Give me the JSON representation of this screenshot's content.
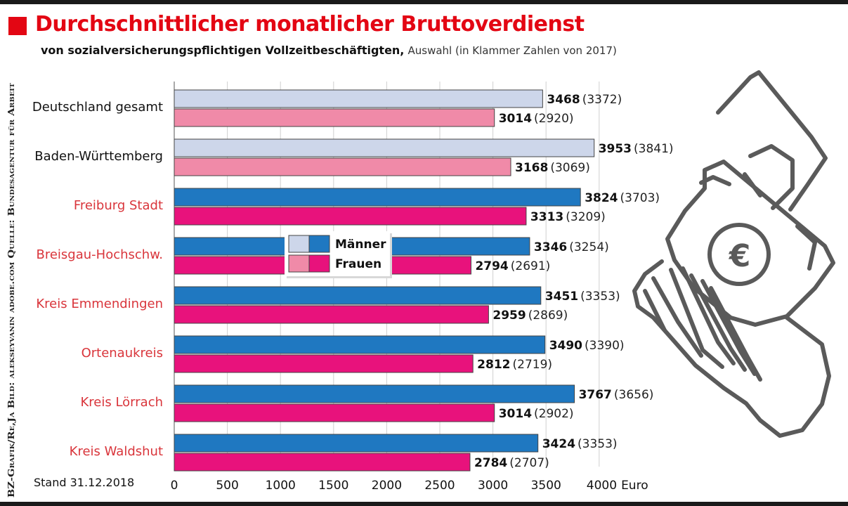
{
  "header": {
    "title": "Durchschnittlicher monatlicher Bruttoverdienst",
    "subtitle_bold": "von sozialversicherungspflichtigen Vollzeitbeschäftigten,",
    "subtitle_rest": "Auswahl (in Klammer Zahlen von 2017)",
    "title_color": "#e30613"
  },
  "source": "BZ-Grafik/Re,Ja   Bild: alekseyvanin adobe.com   Quelle: Bundesagentur für Arbeit",
  "footer": {
    "stand": "Stand 31.12.2018"
  },
  "illustration": {
    "icon": "hand-money-euro-icon",
    "symbol": "€"
  },
  "chart_data": {
    "type": "bar",
    "orientation": "horizontal",
    "categories": [
      "Deutschland gesamt",
      "Baden-Württemberg",
      "Freiburg Stadt",
      "Breisgau-Hochschw.",
      "Kreis Emmendingen",
      "Ortenaukreis",
      "Kreis Lörrach",
      "Kreis Waldshut"
    ],
    "category_highlight": [
      false,
      false,
      true,
      true,
      true,
      true,
      true,
      true
    ],
    "series": [
      {
        "name": "Männer",
        "values": [
          3468,
          3953,
          3824,
          3346,
          3451,
          3490,
          3767,
          3424
        ],
        "values_2017": [
          3372,
          3841,
          3703,
          3254,
          3353,
          3390,
          3656,
          3353
        ],
        "color": "#1f78c1",
        "color_light": "#cdd6ea"
      },
      {
        "name": "Frauen",
        "values": [
          3014,
          3168,
          3313,
          2794,
          2959,
          2812,
          3014,
          2784
        ],
        "values_2017": [
          2920,
          3069,
          3209,
          2691,
          2869,
          2719,
          2902,
          2707
        ],
        "color": "#e8127c",
        "color_light": "#f08aa8"
      }
    ],
    "ticks": [
      0,
      500,
      1000,
      1500,
      2000,
      2500,
      3000,
      3500,
      4000
    ],
    "xlim": [
      0,
      4000
    ],
    "xlabel": "Euro",
    "grid": true,
    "legend_position": "center",
    "label_color_default": "#111111",
    "label_color_highlight": "#d9353b"
  }
}
